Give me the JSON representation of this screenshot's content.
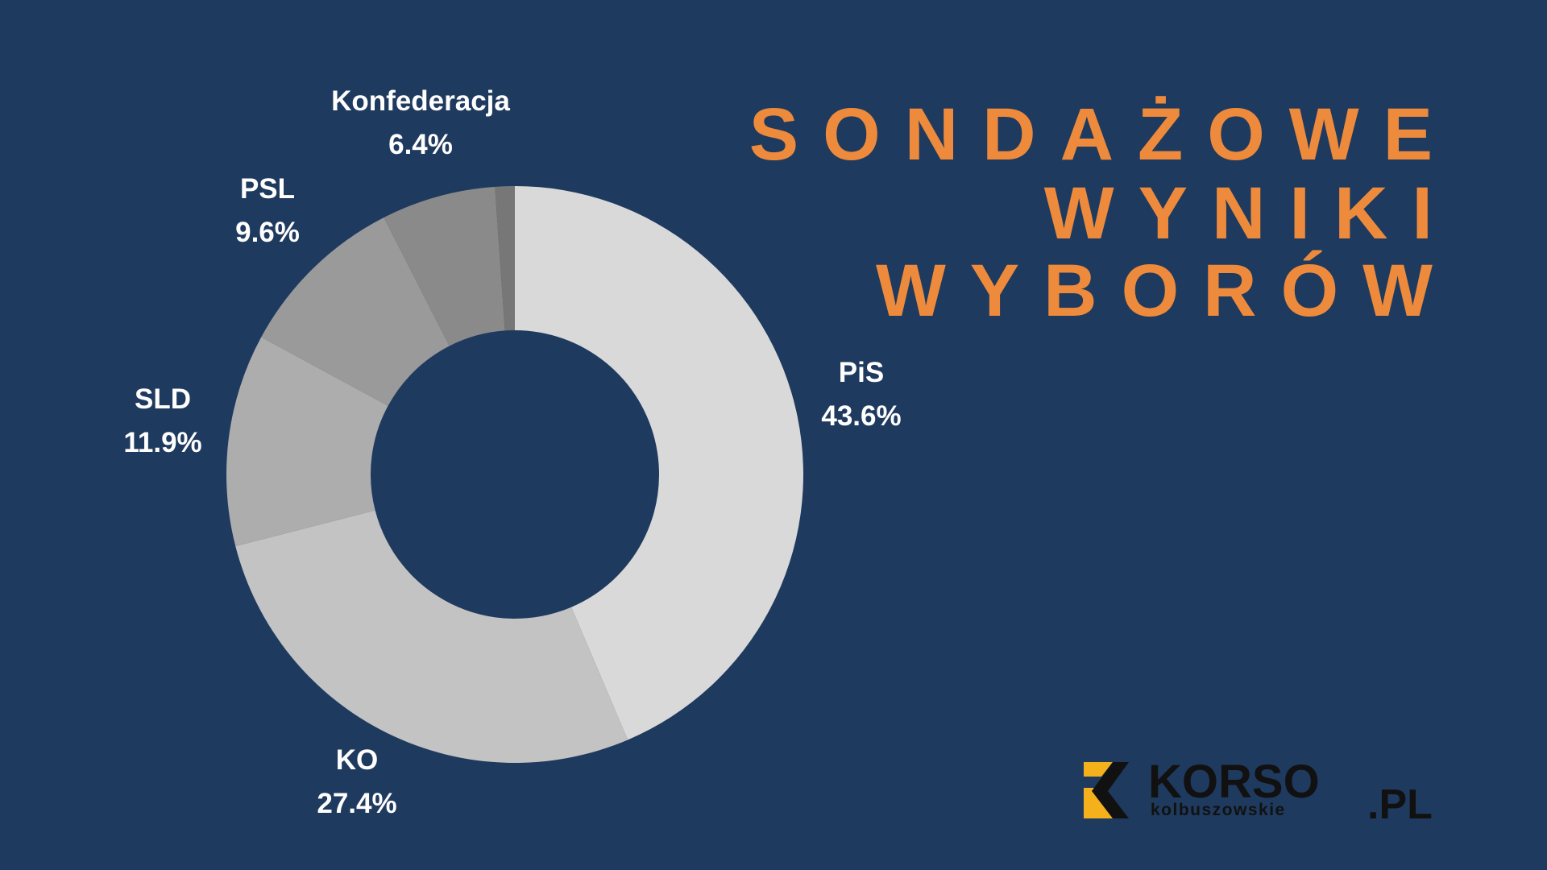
{
  "chart_data": {
    "type": "donut",
    "title": [
      "SONDAŻOWE",
      "WYNIKI",
      "WYBORÓW"
    ],
    "categories": [
      "PiS",
      "KO",
      "SLD",
      "PSL",
      "Konfederacja",
      null
    ],
    "values": [
      43.6,
      27.4,
      11.9,
      9.6,
      6.4,
      1.1
    ],
    "value_labels": [
      "43.6%",
      "27.4%",
      "11.9%",
      "9.6%",
      "6.4%",
      null
    ],
    "colors": [
      "#d9d9d9",
      "#c3c3c3",
      "#adadad",
      "#9a9a9a",
      "#8a8a8a",
      "#777777"
    ]
  },
  "logo": {
    "name": "KORSO",
    "subtitle": "kolbuszowskie",
    "domain": ".PL"
  }
}
